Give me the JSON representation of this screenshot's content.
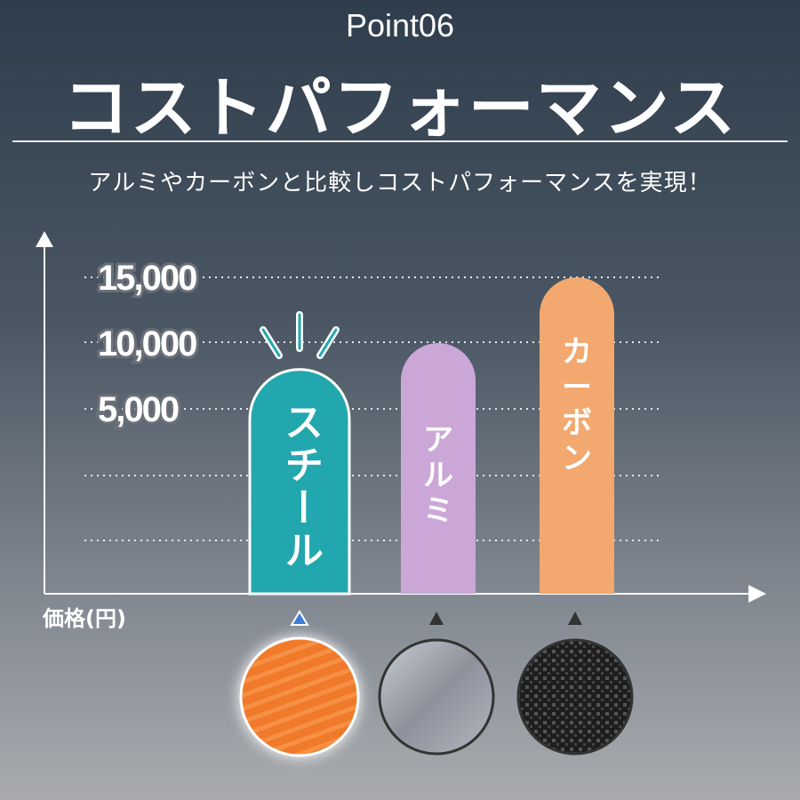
{
  "header": {
    "point": "Point06",
    "title": "コストパフォーマンス",
    "subtitle": "アルミやカーボンと比較しコストパフォーマンスを実現！"
  },
  "chart_data": {
    "type": "bar",
    "categories": [
      "スチール",
      "アルミ",
      "カーボン"
    ],
    "values": [
      8000,
      10000,
      15000
    ],
    "colors": [
      "#23a7ae",
      "#cba7d8",
      "#f2a86e"
    ],
    "ylabel": "価格(円)",
    "yticks": [
      "15,000",
      "10,000",
      "5,000"
    ],
    "ytick_values": [
      15000,
      10000,
      5000
    ],
    "grid": "dotted",
    "highlight": "スチール"
  },
  "materials": [
    {
      "name": "steel-texture",
      "color": "#f07a2a"
    },
    {
      "name": "aluminum-texture",
      "color": "#9a9ca4"
    },
    {
      "name": "carbon-texture",
      "color": "#2a2a2a"
    }
  ]
}
